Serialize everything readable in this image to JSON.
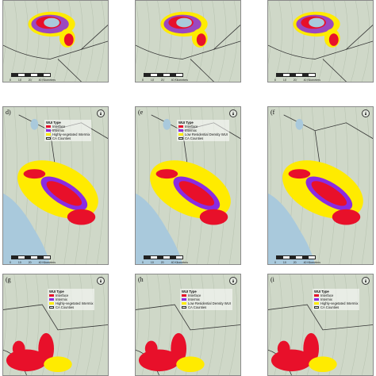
{
  "panels": [
    {
      "id": "a",
      "label": "",
      "legend": false
    },
    {
      "id": "b",
      "label": "",
      "legend": false
    },
    {
      "id": "c",
      "label": "",
      "legend": false
    },
    {
      "id": "d",
      "label": "d)",
      "legend": true,
      "legend_variant": "intermix"
    },
    {
      "id": "e",
      "label": "(e",
      "legend": true,
      "legend_variant": "lowdensity"
    },
    {
      "id": "f",
      "label": "(f",
      "legend": false
    },
    {
      "id": "g",
      "label": "(g",
      "legend": true,
      "legend_variant": "intermix"
    },
    {
      "id": "h",
      "label": "(h",
      "legend": true,
      "legend_variant": "lowdensity"
    },
    {
      "id": "i",
      "label": "(i",
      "legend": true,
      "legend_variant": "intermix"
    }
  ],
  "legend_variants": {
    "intermix": {
      "title": "WUI Type",
      "items": [
        {
          "label": "Interface",
          "color": "#e8102a"
        },
        {
          "label": "Intermix",
          "color": "#8a2be2"
        },
        {
          "label": "Highly-vegetated Intermix",
          "color": "#ffeb00"
        },
        {
          "label": "CA Counties",
          "color": "outline"
        }
      ]
    },
    "lowdensity": {
      "title": "WUI Type",
      "items": [
        {
          "label": "Interface",
          "color": "#e8102a"
        },
        {
          "label": "Intermix",
          "color": "#8a2be2"
        },
        {
          "label": "Low Residential Density WUI",
          "color": "#ffeb00"
        },
        {
          "label": "CA Counties",
          "color": "outline"
        }
      ]
    }
  },
  "scale_labels": [
    "0",
    "10",
    "20",
    "40 Kilometers"
  ],
  "colors": {
    "terrain": "#cfd8c8",
    "water": "#a9c9dc",
    "interface": "#e8102a",
    "intermix": "#8a2be2",
    "vegetated": "#ffeb00",
    "county": "#333333"
  }
}
